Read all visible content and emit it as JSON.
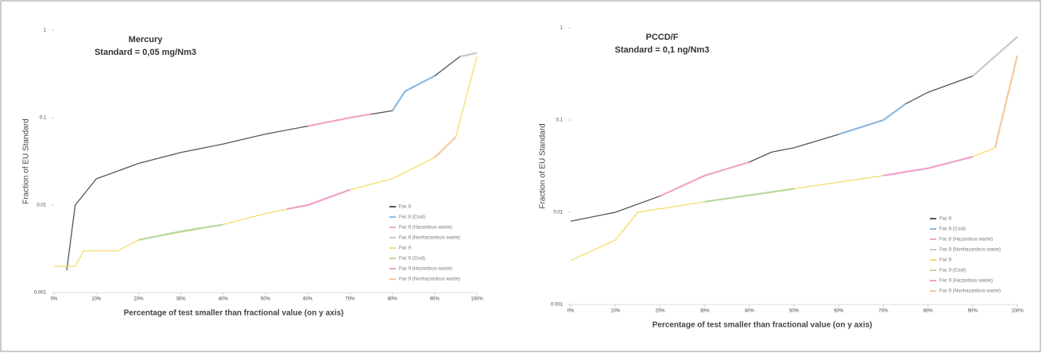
{
  "chart_data": [
    {
      "type": "line",
      "title": "Mercury",
      "subtitle": "Standard = 0,05 mg/Nm3",
      "x_label": "Percentage of test smaller than fractional value (on y axis)",
      "y_label": "Fraction of EU Standard",
      "ylog": true,
      "ylim": [
        0.001,
        1
      ],
      "yticks": [
        0.001,
        0.01,
        0.1,
        1
      ],
      "xlim": [
        0,
        100
      ],
      "xticks": [
        {
          "value": 0,
          "label": "0%"
        },
        {
          "value": 10,
          "label": "10%"
        },
        {
          "value": 20,
          "label": "20%"
        },
        {
          "value": 30,
          "label": "30%"
        },
        {
          "value": 40,
          "label": "40%"
        },
        {
          "value": 50,
          "label": "50%"
        },
        {
          "value": 60,
          "label": "60%"
        },
        {
          "value": 70,
          "label": "70%"
        },
        {
          "value": 80,
          "label": "80%"
        },
        {
          "value": 90,
          "label": "90%"
        },
        {
          "value": 100,
          "label": "100%"
        }
      ],
      "series": [
        {
          "name": "Fac 8",
          "color": "#555555",
          "x": [
            3,
            5,
            10,
            20,
            30,
            40,
            50,
            60,
            70,
            80,
            83,
            90,
            96,
            100
          ],
          "values": [
            0.0018,
            0.01,
            0.02,
            0.03,
            0.04,
            0.05,
            0.065,
            0.08,
            0.1,
            0.12,
            0.2,
            0.3,
            0.5,
            0.55
          ]
        },
        {
          "name": "Fac 8 (Coal)",
          "color": "#8fb8e0",
          "x": [
            80,
            83,
            90
          ],
          "values": [
            0.12,
            0.2,
            0.3
          ]
        },
        {
          "name": "Fac 8 (Hazardous waste)",
          "color": "#f2a8bb",
          "x": [
            60,
            70,
            75
          ],
          "values": [
            0.08,
            0.1,
            0.11
          ]
        },
        {
          "name": "Fac 8 (Nonhazardous waste)",
          "color": "#c8c8c8",
          "x": [
            96,
            100
          ],
          "values": [
            0.5,
            0.55
          ]
        },
        {
          "name": "Fac 9",
          "color": "#f5dc6a",
          "x": [
            0,
            5,
            7,
            15,
            20,
            40,
            50,
            60,
            70,
            80,
            90,
            95,
            100
          ],
          "values": [
            0.002,
            0.002,
            0.003,
            0.003,
            0.004,
            0.006,
            0.008,
            0.01,
            0.015,
            0.02,
            0.035,
            0.06,
            0.5
          ]
        },
        {
          "name": "Fac 9 (Coal)",
          "color": "#b5d99c",
          "x": [
            20,
            30,
            40
          ],
          "values": [
            0.004,
            0.005,
            0.006
          ]
        },
        {
          "name": "Fac 9 (Hazardous waste)",
          "color": "#f0a0c8",
          "x": [
            55,
            60,
            70
          ],
          "values": [
            0.009,
            0.01,
            0.015
          ]
        },
        {
          "name": "Fac 9 (Nonhazardous waste)",
          "color": "#f7c89a",
          "x": [
            90,
            95
          ],
          "values": [
            0.035,
            0.06
          ]
        }
      ]
    },
    {
      "type": "line",
      "title": "PCCD/F",
      "subtitle": "Standard = 0,1 ng/Nm3",
      "x_label": "Percentage of test smaller than fractional value (on y axis)",
      "y_label": "Fraction of EU Standard",
      "ylog": true,
      "ylim": [
        0.001,
        1
      ],
      "yticks": [
        0.001,
        0.01,
        0.1,
        1
      ],
      "xlim": [
        0,
        100
      ],
      "xticks": [
        {
          "value": 0,
          "label": "0%"
        },
        {
          "value": 10,
          "label": "10%"
        },
        {
          "value": 20,
          "label": "20%"
        },
        {
          "value": 30,
          "label": "30%"
        },
        {
          "value": 40,
          "label": "40%"
        },
        {
          "value": 50,
          "label": "50%"
        },
        {
          "value": 60,
          "label": "60%"
        },
        {
          "value": 70,
          "label": "70%"
        },
        {
          "value": 80,
          "label": "80%"
        },
        {
          "value": 90,
          "label": "90%"
        },
        {
          "value": 100,
          "label": "100%"
        }
      ],
      "series": [
        {
          "name": "Fac 8",
          "color": "#555555",
          "x": [
            0,
            10,
            20,
            30,
            40,
            45,
            50,
            60,
            70,
            75,
            80,
            90,
            100
          ],
          "values": [
            0.008,
            0.01,
            0.015,
            0.025,
            0.035,
            0.045,
            0.05,
            0.07,
            0.1,
            0.15,
            0.2,
            0.3,
            0.8
          ]
        },
        {
          "name": "Fac 8 (Coal)",
          "color": "#8fb8e0",
          "x": [
            60,
            70,
            75
          ],
          "values": [
            0.07,
            0.1,
            0.15
          ]
        },
        {
          "name": "Fac 8 (Hazardous waste)",
          "color": "#f2a8bb",
          "x": [
            20,
            30,
            40
          ],
          "values": [
            0.015,
            0.025,
            0.035
          ]
        },
        {
          "name": "Fac 8 (Nonhazardous waste)",
          "color": "#c8c8c8",
          "x": [
            90,
            100
          ],
          "values": [
            0.3,
            0.8
          ]
        },
        {
          "name": "Fac 9",
          "color": "#f5dc6a",
          "x": [
            0,
            10,
            15,
            30,
            50,
            70,
            80,
            90,
            95,
            100
          ],
          "values": [
            0.003,
            0.005,
            0.01,
            0.013,
            0.018,
            0.025,
            0.03,
            0.04,
            0.05,
            0.5
          ]
        },
        {
          "name": "Fac 9 (Coal)",
          "color": "#b5d99c",
          "x": [
            30,
            50
          ],
          "values": [
            0.013,
            0.018
          ]
        },
        {
          "name": "Fac 9 (Hazardous waste)",
          "color": "#f0a0c8",
          "x": [
            70,
            80,
            90
          ],
          "values": [
            0.025,
            0.03,
            0.04
          ]
        },
        {
          "name": "Fac 9 (Nonhazardous waste)",
          "color": "#f7c89a",
          "x": [
            95,
            100
          ],
          "values": [
            0.05,
            0.5
          ]
        }
      ]
    }
  ]
}
